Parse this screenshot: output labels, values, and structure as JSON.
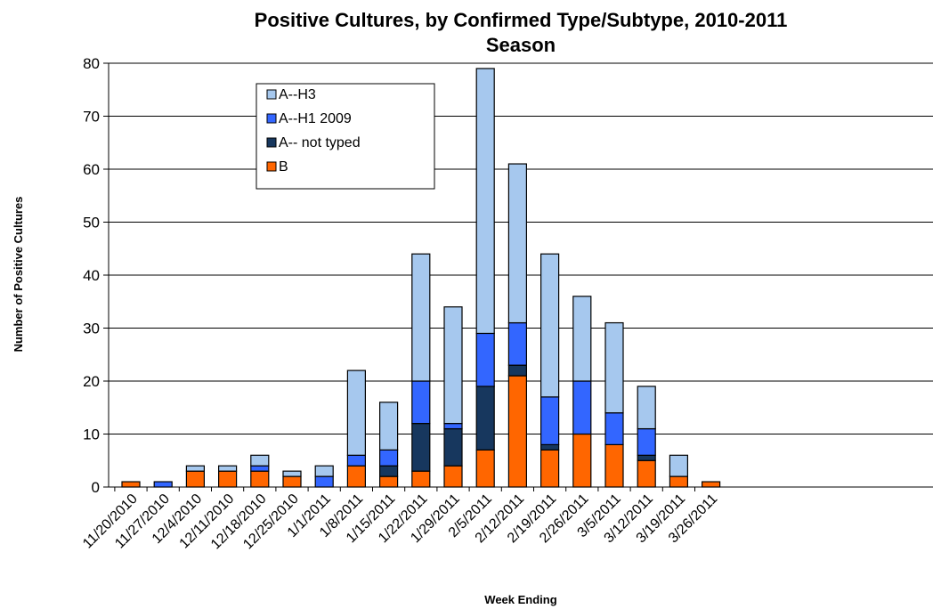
{
  "chart_data": {
    "type": "bar",
    "stacked": true,
    "title": "Positive Cultures, by Confirmed Type/Subtype, 2010-2011",
    "title_line2": "Season",
    "xlabel": "Week Ending",
    "ylabel": "Number of Positive Cultures",
    "ylim": [
      0,
      80
    ],
    "yticks": [
      "0",
      "10",
      "20",
      "30",
      "40",
      "50",
      "60",
      "70",
      "80"
    ],
    "grid": true,
    "legend_position": "top-left",
    "categories": [
      "11/20/2010",
      "11/27/2010",
      "12/4/2010",
      "12/11/2010",
      "12/18/2010",
      "12/25/2010",
      "1/1/2011",
      "1/8/2011",
      "1/15/2011",
      "1/22/2011",
      "1/29/2011",
      "2/5/2011",
      "2/12/2011",
      "2/19/2011",
      "2/26/2011",
      "3/5/2011",
      "3/12/2011",
      "3/19/2011",
      "3/26/2011"
    ],
    "series": [
      {
        "name": "B",
        "color": "#ff6600",
        "values": [
          1,
          0,
          3,
          3,
          3,
          2,
          0,
          4,
          2,
          3,
          4,
          7,
          21,
          7,
          10,
          8,
          5,
          2,
          1
        ]
      },
      {
        "name": "A-- not typed",
        "color": "#17375e",
        "values": [
          0,
          0,
          0,
          0,
          0,
          0,
          0,
          0,
          2,
          9,
          7,
          12,
          2,
          1,
          0,
          0,
          1,
          0,
          0
        ]
      },
      {
        "name": "A--H1 2009",
        "color": "#3366ff",
        "values": [
          0,
          1,
          0,
          0,
          1,
          0,
          2,
          2,
          3,
          8,
          1,
          10,
          8,
          9,
          10,
          6,
          5,
          0,
          0
        ]
      },
      {
        "name": "A--H3",
        "color": "#a6c8ee",
        "values": [
          0,
          0,
          1,
          1,
          2,
          1,
          2,
          16,
          9,
          24,
          22,
          50,
          30,
          27,
          16,
          17,
          8,
          4,
          0
        ]
      }
    ],
    "legend_order": [
      "A--H3",
      "A--H1 2009",
      "A-- not typed",
      "B"
    ]
  }
}
